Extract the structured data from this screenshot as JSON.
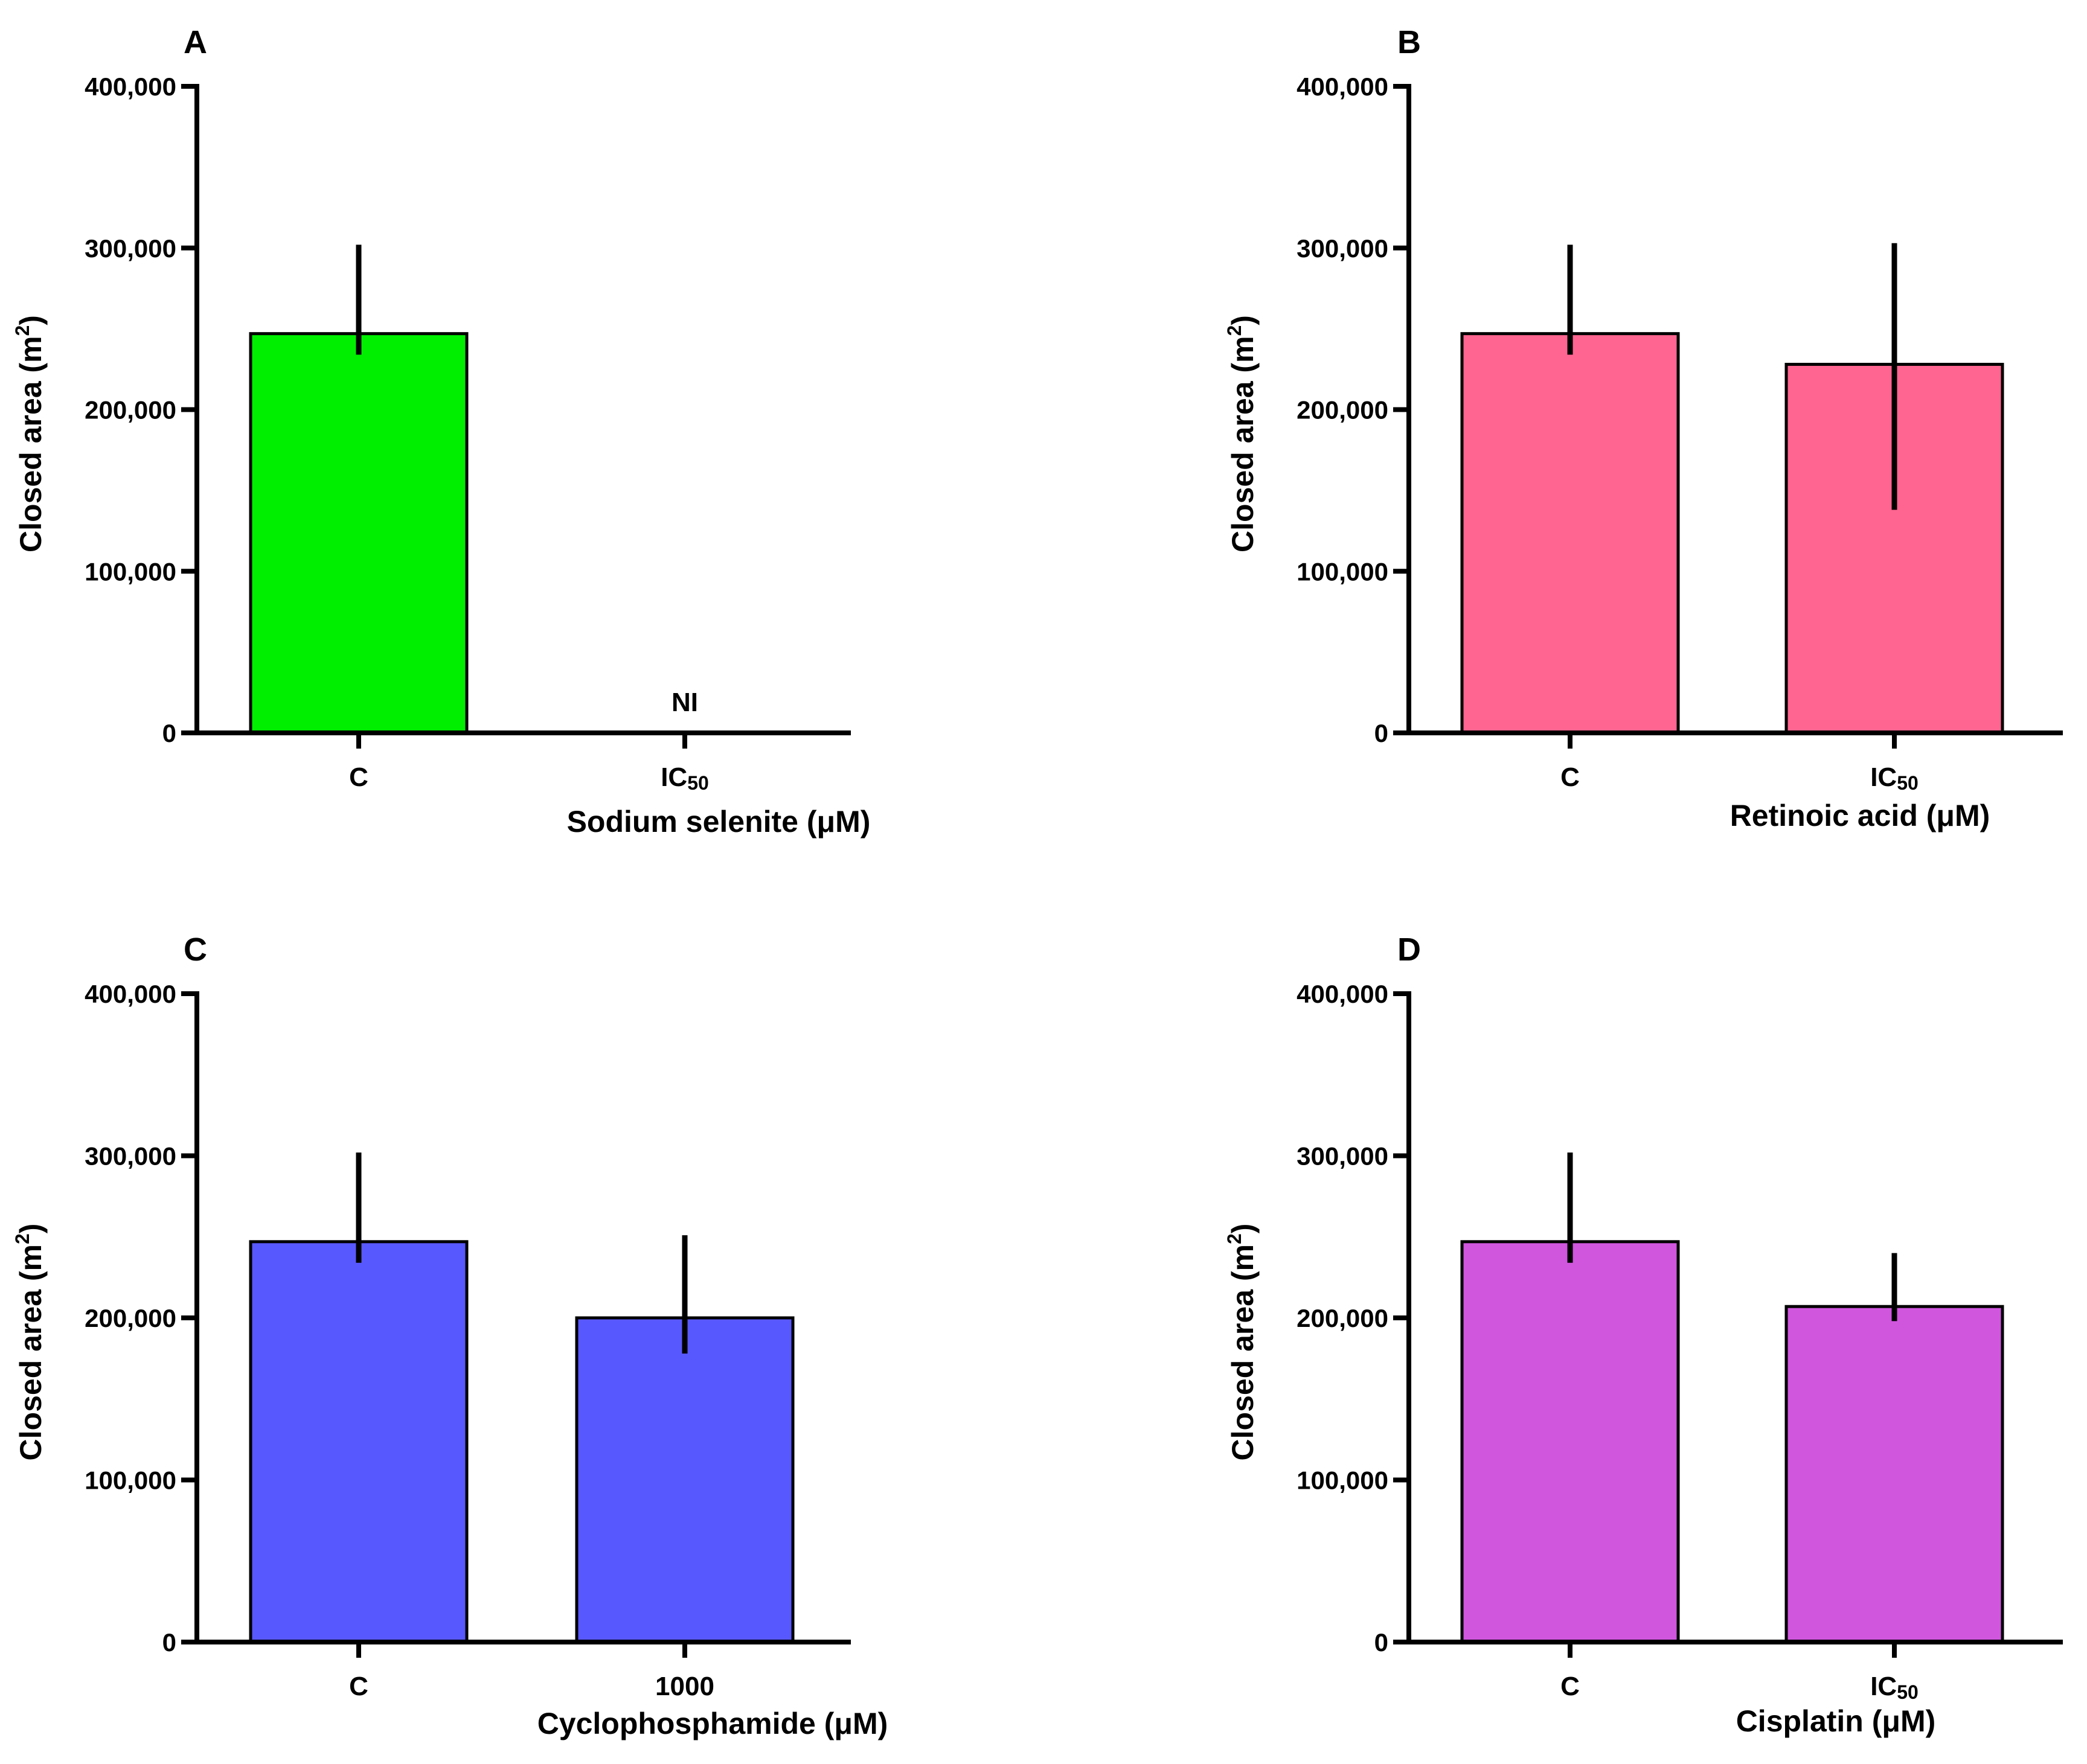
{
  "chart_data": [
    {
      "panel": "A",
      "type": "bar",
      "categories": [
        "C",
        "IC50"
      ],
      "category_display": [
        {
          "main": "C",
          "sub": ""
        },
        {
          "main": "IC",
          "sub": "50"
        }
      ],
      "values": [
        247000,
        null
      ],
      "error_upper": [
        302000,
        null
      ],
      "error_lower": [
        234000,
        null
      ],
      "annotations": [
        "",
        "NI"
      ],
      "xlabel": "Sodium selenite (μM)",
      "ylabel_main": "Closed area (m",
      "ylabel_sup": "2",
      "ylabel_close": ")",
      "ylim": [
        0,
        400000
      ],
      "yticks": [
        0,
        100000,
        200000,
        300000,
        400000
      ],
      "ytick_labels": [
        "0",
        "100,000",
        "200,000",
        "300,000",
        "400,000"
      ],
      "color": "#00ee00"
    },
    {
      "panel": "B",
      "type": "bar",
      "categories": [
        "C",
        "IC50"
      ],
      "category_display": [
        {
          "main": "C",
          "sub": ""
        },
        {
          "main": "IC",
          "sub": "50"
        }
      ],
      "values": [
        247000,
        228000
      ],
      "error_upper": [
        302000,
        303000
      ],
      "error_lower": [
        234000,
        138000
      ],
      "annotations": [
        "",
        ""
      ],
      "xlabel": "Retinoic acid (μM)",
      "ylabel_main": "Closed area (m",
      "ylabel_sup": "2",
      "ylabel_close": ")",
      "ylim": [
        0,
        400000
      ],
      "yticks": [
        0,
        100000,
        200000,
        300000,
        400000
      ],
      "ytick_labels": [
        "0",
        "100,000",
        "200,000",
        "300,000",
        "400,000"
      ],
      "color": "#ff6590"
    },
    {
      "panel": "C",
      "type": "bar",
      "categories": [
        "C",
        "1000"
      ],
      "category_display": [
        {
          "main": "C",
          "sub": ""
        },
        {
          "main": "1000",
          "sub": ""
        }
      ],
      "values": [
        247000,
        200000
      ],
      "error_upper": [
        302000,
        251000
      ],
      "error_lower": [
        234000,
        178000
      ],
      "annotations": [
        "",
        ""
      ],
      "xlabel": "Cyclophosphamide (μM)",
      "ylabel_main": "Closed area (m",
      "ylabel_sup": "2",
      "ylabel_close": ")",
      "ylim": [
        0,
        400000
      ],
      "yticks": [
        0,
        100000,
        200000,
        300000,
        400000
      ],
      "ytick_labels": [
        "0",
        "100,000",
        "200,000",
        "300,000",
        "400,000"
      ],
      "color": "#5858ff"
    },
    {
      "panel": "D",
      "type": "bar",
      "categories": [
        "C",
        "IC50"
      ],
      "category_display": [
        {
          "main": "C",
          "sub": ""
        },
        {
          "main": "IC",
          "sub": "50"
        }
      ],
      "values": [
        247000,
        207000
      ],
      "error_upper": [
        302000,
        240000
      ],
      "error_lower": [
        234000,
        198000
      ],
      "annotations": [
        "",
        ""
      ],
      "xlabel": "Cisplatin (μM)",
      "ylabel_main": "Closed area (m",
      "ylabel_sup": "2",
      "ylabel_close": ")",
      "ylim": [
        0,
        400000
      ],
      "yticks": [
        0,
        100000,
        200000,
        300000,
        400000
      ],
      "ytick_labels": [
        "0",
        "100,000",
        "200,000",
        "300,000",
        "400,000"
      ],
      "color": "#d056de"
    }
  ]
}
